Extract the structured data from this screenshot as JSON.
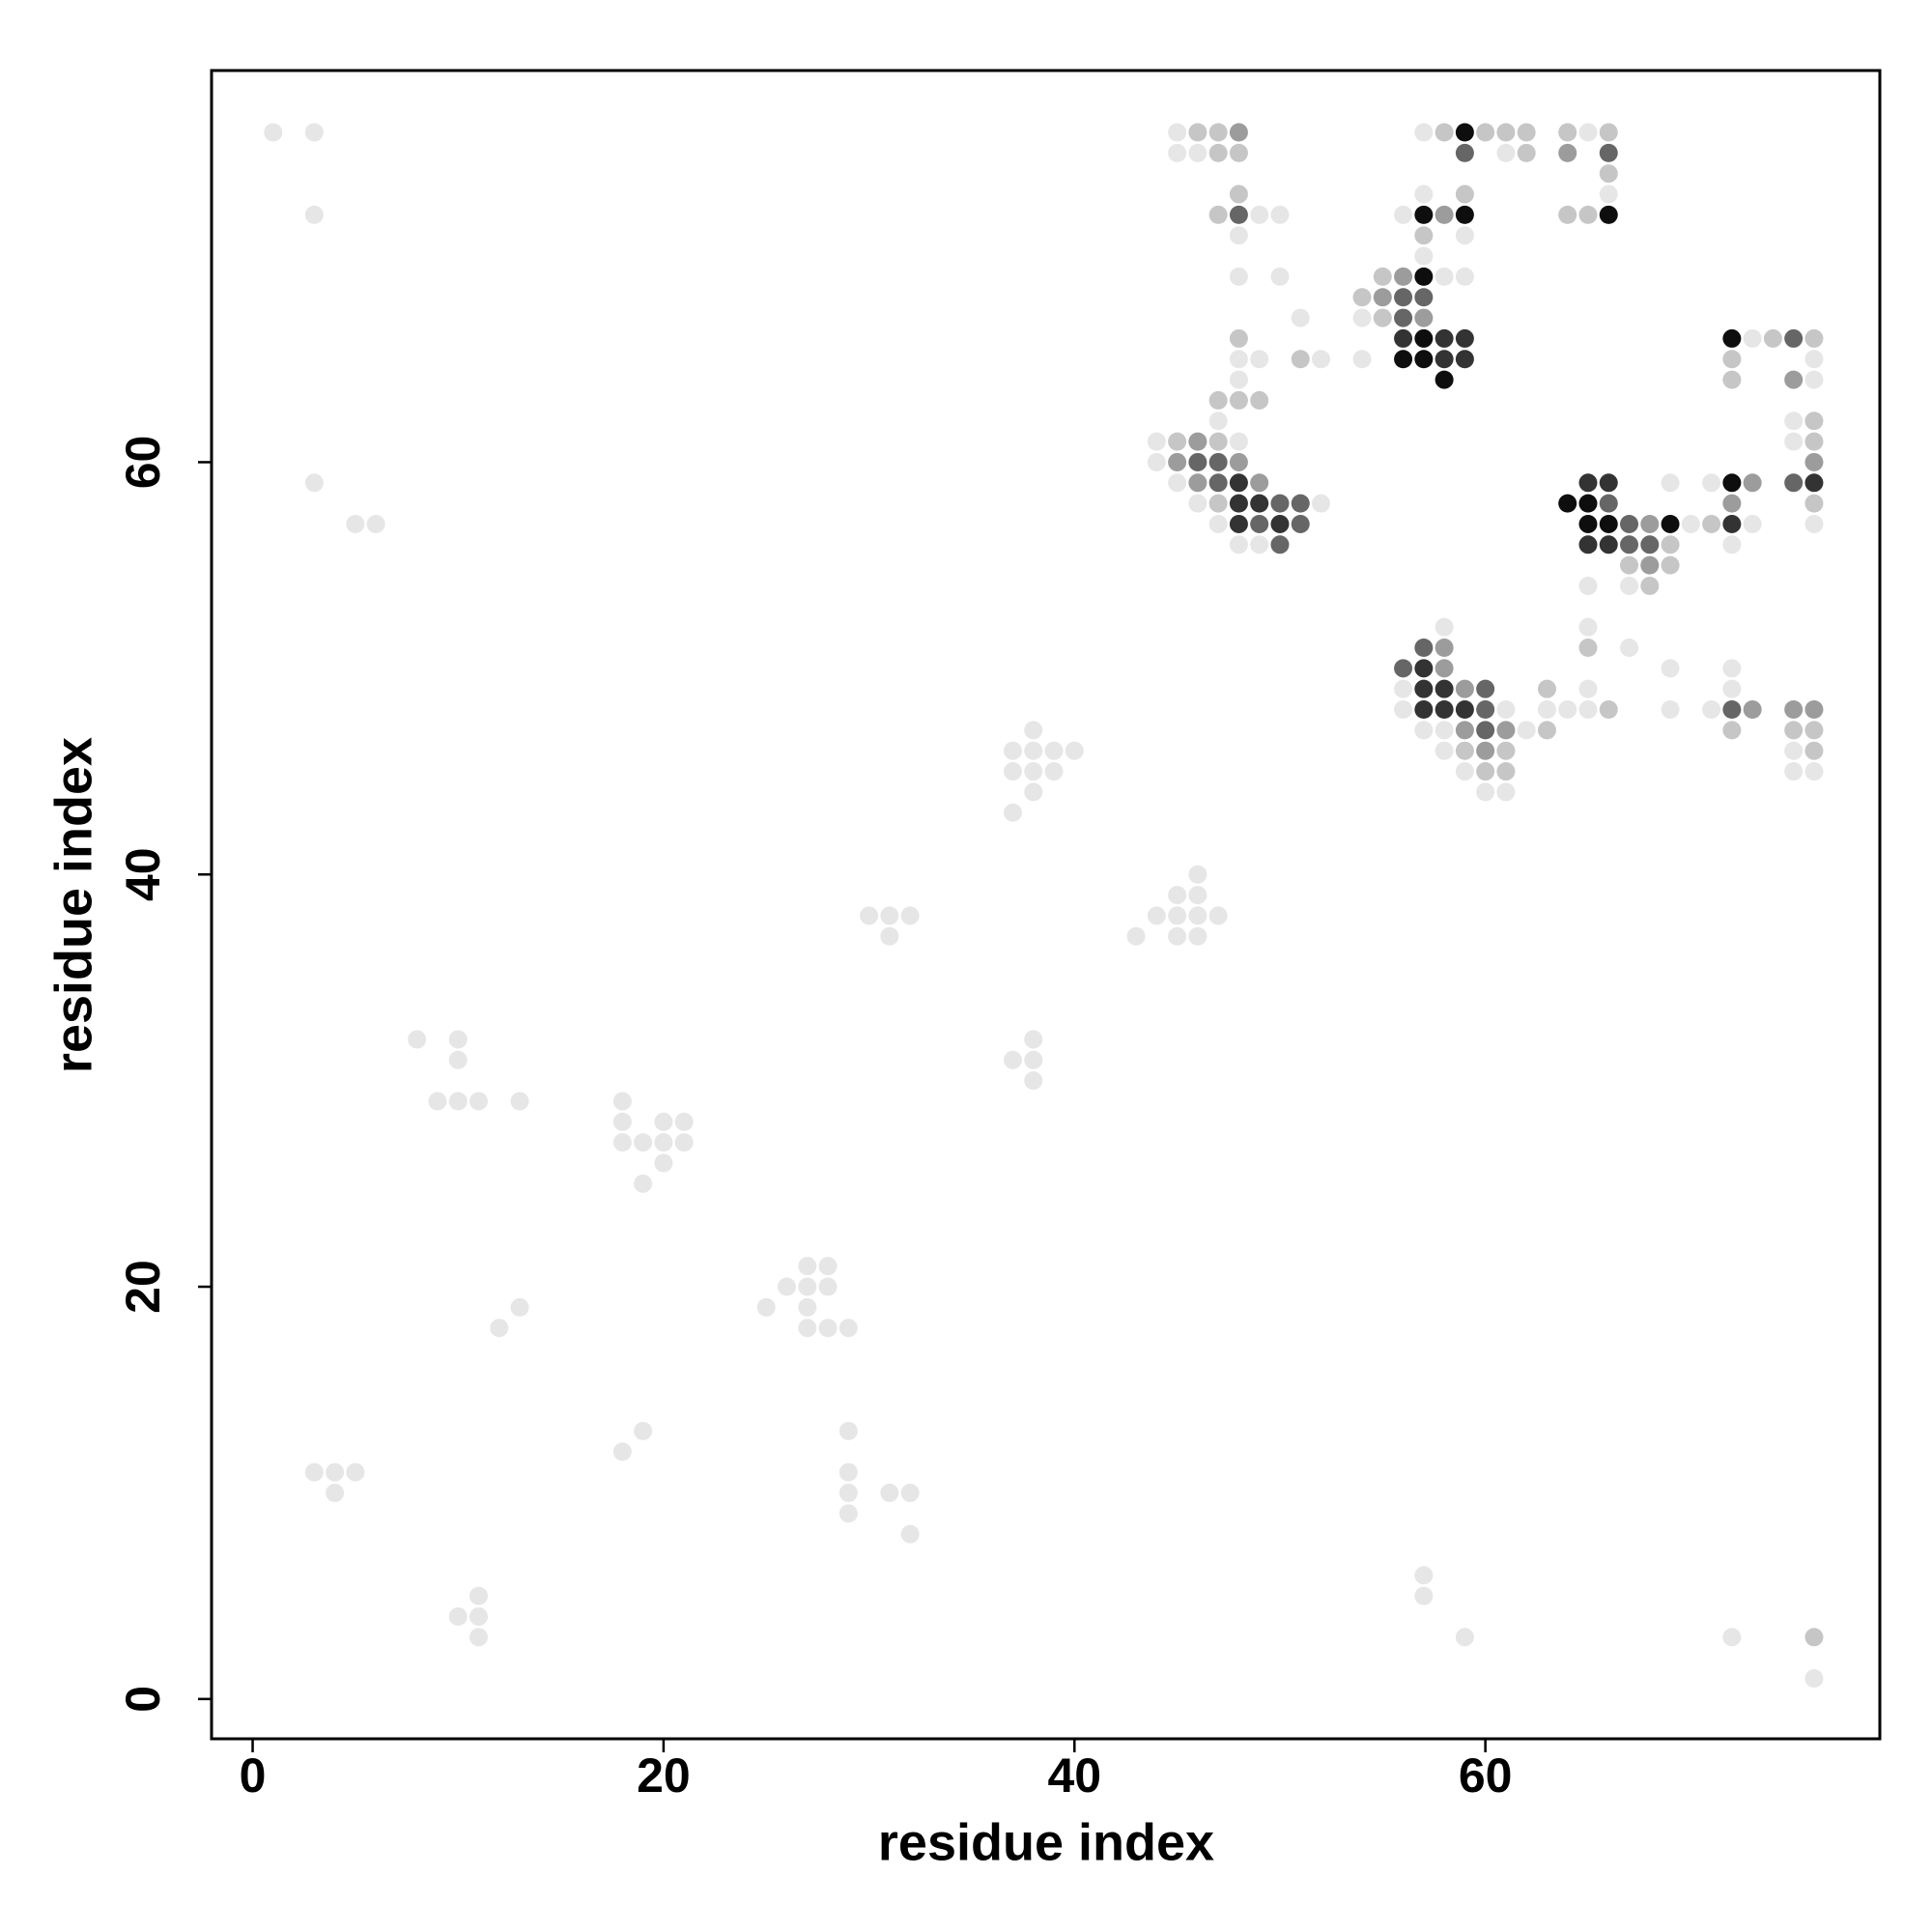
{
  "chart_data": {
    "type": "scatter",
    "xlabel": "residue index",
    "ylabel": "residue index",
    "xlim": [
      -2,
      79.2
    ],
    "ylim": [
      -1.93,
      79
    ],
    "xticks": [
      0,
      20,
      40,
      60
    ],
    "yticks": [
      0,
      20,
      40,
      60
    ],
    "series": [
      {
        "color": "#e6e6e6",
        "x": [
          1,
          3,
          3,
          3,
          5,
          6,
          8,
          10,
          10,
          9,
          10,
          11,
          13,
          18,
          18,
          20,
          21,
          18,
          19,
          20,
          21,
          20,
          19,
          27,
          28,
          26,
          27,
          28,
          25,
          27,
          13,
          27,
          28,
          29,
          12,
          3,
          4,
          5,
          4,
          19,
          18,
          29,
          29,
          29,
          29,
          31,
          32,
          32,
          11,
          10,
          11,
          11,
          30,
          31,
          32,
          31,
          38,
          37,
          38,
          38,
          38,
          37,
          38,
          39,
          40,
          37,
          38,
          39,
          38,
          37,
          46,
          45,
          46,
          44,
          45,
          46,
          47,
          43,
          45,
          46,
          57,
          57,
          59,
          72,
          76,
          45,
          65,
          57,
          45,
          46,
          61,
          57,
          66,
          49,
          50,
          56,
          48,
          59,
          57,
          48,
          50,
          58,
          59,
          51,
          54,
          73,
          48,
          49,
          52,
          54,
          76,
          48,
          76,
          47,
          75,
          44,
          48,
          75,
          44,
          45,
          69,
          71,
          46,
          52,
          47,
          70,
          73,
          76,
          48,
          49,
          72,
          65,
          67,
          58,
          65,
          67,
          69,
          72,
          56,
          65,
          72,
          56,
          61,
          63,
          64,
          65,
          69,
          71,
          57,
          58,
          62,
          58,
          75,
          59,
          75,
          76,
          60,
          61
        ],
        "values": [
          76,
          76,
          72,
          59,
          57,
          57,
          32,
          32,
          31,
          29,
          29,
          29,
          29,
          29,
          28,
          28,
          28,
          27,
          27,
          27,
          27,
          26,
          25,
          21,
          21,
          20,
          20,
          20,
          19,
          19,
          19,
          18,
          18,
          18,
          18,
          11,
          11,
          11,
          10,
          13,
          12,
          13,
          11,
          10,
          9,
          10,
          10,
          8,
          5,
          4,
          4,
          3,
          38,
          38,
          38,
          37,
          32,
          31,
          31,
          30,
          47,
          46,
          46,
          46,
          46,
          45,
          45,
          45,
          44,
          43,
          40,
          39,
          39,
          38,
          38,
          38,
          38,
          37,
          37,
          37,
          6,
          5,
          3,
          3,
          1,
          76,
          76,
          76,
          75,
          75,
          75,
          73,
          73,
          72,
          72,
          72,
          71,
          71,
          70,
          69,
          69,
          69,
          69,
          67,
          67,
          66,
          65,
          65,
          65,
          65,
          65,
          64,
          64,
          62,
          62,
          61,
          61,
          61,
          60,
          59,
          59,
          59,
          58,
          58,
          57,
          57,
          57,
          57,
          56,
          56,
          56,
          54,
          54,
          52,
          52,
          51,
          50,
          50,
          49,
          49,
          49,
          48,
          48,
          48,
          48,
          48,
          48,
          48,
          47,
          47,
          47,
          46,
          46,
          45,
          45,
          45,
          44,
          44
        ]
      },
      {
        "color": "#c6c6c6",
        "x": [
          46,
          47,
          58,
          60,
          61,
          62,
          64,
          66,
          47,
          48,
          62,
          66,
          48,
          59,
          47,
          64,
          65,
          57,
          55,
          54,
          55,
          48,
          74,
          76,
          51,
          72,
          72,
          47,
          48,
          49,
          76,
          45,
          47,
          76,
          47,
          76,
          71,
          69,
          67,
          69,
          68,
          65,
          63,
          66,
          63,
          72,
          75,
          76,
          59,
          61,
          76,
          60,
          61,
          76
        ],
        "values": [
          76,
          76,
          76,
          76,
          76,
          76,
          76,
          76,
          75,
          75,
          75,
          74,
          73,
          73,
          72,
          72,
          72,
          71,
          69,
          68,
          67,
          66,
          66,
          66,
          65,
          65,
          64,
          63,
          63,
          63,
          62,
          61,
          61,
          61,
          58,
          58,
          57,
          56,
          55,
          55,
          54,
          51,
          49,
          48,
          47,
          47,
          47,
          47,
          46,
          46,
          46,
          45,
          45,
          3
        ]
      },
      {
        "color": "#9c9c9c",
        "x": [
          48,
          64,
          58,
          56,
          55,
          57,
          75,
          46,
          45,
          48,
          76,
          46,
          49,
          73,
          72,
          68,
          68,
          58,
          58,
          59,
          73,
          75,
          76,
          59,
          61,
          60
        ],
        "values": [
          76,
          75,
          72,
          69,
          68,
          67,
          64,
          61,
          60,
          60,
          60,
          59,
          59,
          59,
          58,
          57,
          55,
          51,
          50,
          49,
          48,
          48,
          48,
          47,
          47,
          46
        ]
      },
      {
        "color": "#666666",
        "x": [
          59,
          66,
          48,
          56,
          57,
          56,
          75,
          46,
          47,
          47,
          75,
          50,
          51,
          66,
          49,
          51,
          67,
          50,
          67,
          68,
          57,
          56,
          60,
          60,
          72,
          60
        ],
        "values": [
          75,
          75,
          72,
          68,
          68,
          67,
          66,
          60,
          60,
          59,
          59,
          58,
          58,
          58,
          57,
          57,
          57,
          56,
          56,
          56,
          51,
          50,
          49,
          48,
          48,
          47
        ]
      },
      {
        "color": "#333333",
        "x": [
          56,
          58,
          59,
          58,
          59,
          48,
          65,
          66,
          76,
          48,
          49,
          48,
          50,
          72,
          65,
          66,
          57,
          57,
          58,
          57,
          58,
          59
        ],
        "values": [
          66,
          66,
          66,
          65,
          65,
          59,
          59,
          59,
          59,
          58,
          58,
          57,
          57,
          57,
          56,
          56,
          50,
          49,
          49,
          48,
          48,
          48
        ]
      },
      {
        "color": "#0e0e0e",
        "x": [
          59,
          57,
          59,
          66,
          57,
          57,
          72,
          56,
          57,
          58,
          72,
          64,
          65,
          65,
          66,
          69
        ],
        "values": [
          76,
          72,
          72,
          72,
          69,
          66,
          66,
          65,
          65,
          64,
          59,
          58,
          58,
          57,
          57,
          57
        ]
      }
    ]
  }
}
